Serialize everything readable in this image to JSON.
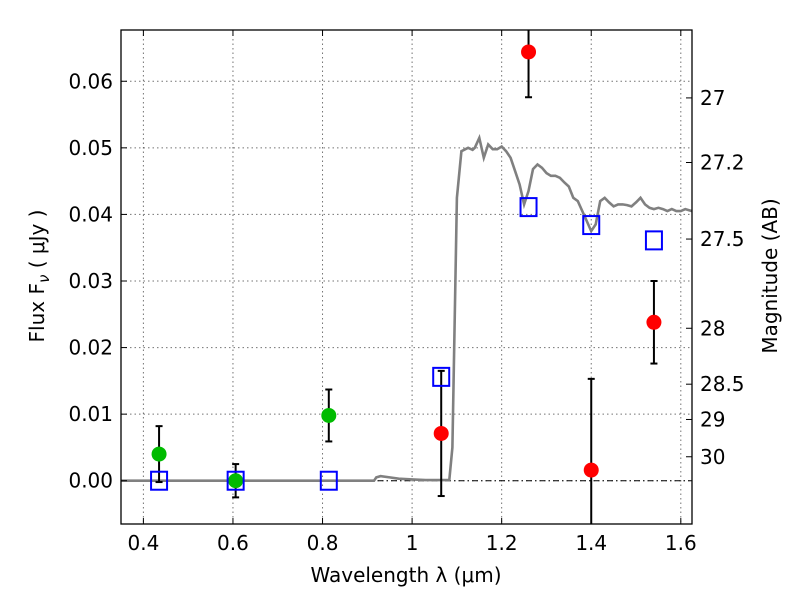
{
  "chart_data": {
    "type": "scatter",
    "xlabel": "Wavelength  λ (μm)",
    "ylabel": "Flux  F",
    "ylabel_sub": "ν",
    "ylabel_unit": "  ( μJy )",
    "y2label": "Magnitude (AB)",
    "xlim": [
      0.35,
      1.625
    ],
    "ylim": [
      -0.0065,
      0.0677
    ],
    "x_ticks": [
      0.4,
      0.6,
      0.8,
      1.0,
      1.2,
      1.4,
      1.6
    ],
    "x_tick_labels": [
      "0.4",
      "0.6",
      "0.8",
      "1",
      "1.2",
      "1.4",
      "1.6"
    ],
    "y_ticks": [
      0.0,
      0.01,
      0.02,
      0.03,
      0.04,
      0.05,
      0.06
    ],
    "y_tick_labels": [
      "0.00",
      "0.01",
      "0.02",
      "0.03",
      "0.04",
      "0.05",
      "0.06"
    ],
    "y2_ticks": [
      {
        "flux": 0.0575,
        "label": "27"
      },
      {
        "flux": 0.0478,
        "label": "27.2"
      },
      {
        "flux": 0.0363,
        "label": "27.5"
      },
      {
        "flux": 0.0229,
        "label": "28"
      },
      {
        "flux": 0.0145,
        "label": "28.5"
      },
      {
        "flux": 0.0092,
        "label": "29"
      },
      {
        "flux": 0.0036,
        "label": "30"
      }
    ],
    "grid": true,
    "series": [
      {
        "color": "#00bb00",
        "marker": "circle",
        "points": [
          {
            "x": 0.435,
            "y": 0.004,
            "err": 0.0042
          },
          {
            "x": 0.606,
            "y": 0.0,
            "err": 0.0025
          },
          {
            "x": 0.814,
            "y": 0.0098,
            "err": 0.0039
          }
        ]
      },
      {
        "color": "#ff0000",
        "marker": "circle",
        "points": [
          {
            "x": 1.065,
            "y": 0.0071,
            "err": 0.0094
          },
          {
            "x": 1.26,
            "y": 0.0644,
            "err": 0.0068
          },
          {
            "x": 1.4,
            "y": 0.0016,
            "err": 0.0137
          },
          {
            "x": 1.54,
            "y": 0.0238,
            "err": 0.0062
          }
        ]
      },
      {
        "color": "#0000ff",
        "marker": "square",
        "points": [
          {
            "x": 0.435,
            "y": 0.0
          },
          {
            "x": 0.606,
            "y": 0.0
          },
          {
            "x": 0.814,
            "y": 0.0
          },
          {
            "x": 1.065,
            "y": 0.0156
          },
          {
            "x": 1.26,
            "y": 0.0411
          },
          {
            "x": 1.4,
            "y": 0.0384
          },
          {
            "x": 1.54,
            "y": 0.0361
          }
        ]
      }
    ],
    "spectrum": {
      "color": "#808080",
      "x": [
        0.35,
        0.5,
        0.7,
        0.9,
        0.915,
        0.92,
        0.93,
        0.95,
        0.97,
        1.0,
        1.03,
        1.06,
        1.083,
        1.09,
        1.1,
        1.11,
        1.125,
        1.135,
        1.14,
        1.15,
        1.16,
        1.17,
        1.18,
        1.19,
        1.2,
        1.21,
        1.22,
        1.23,
        1.24,
        1.25,
        1.26,
        1.27,
        1.28,
        1.29,
        1.3,
        1.31,
        1.32,
        1.33,
        1.34,
        1.35,
        1.36,
        1.37,
        1.38,
        1.39,
        1.4,
        1.41,
        1.42,
        1.43,
        1.44,
        1.45,
        1.46,
        1.47,
        1.48,
        1.49,
        1.5,
        1.51,
        1.52,
        1.53,
        1.54,
        1.55,
        1.56,
        1.57,
        1.58,
        1.59,
        1.6,
        1.61,
        1.625
      ],
      "y": [
        0.0,
        0.0,
        0.0,
        0.0,
        0.0,
        0.0005,
        0.0007,
        0.0005,
        0.0003,
        0.0002,
        0.0001,
        0.0001,
        0.0001,
        0.005,
        0.0425,
        0.0495,
        0.05,
        0.0497,
        0.05,
        0.0515,
        0.0485,
        0.0505,
        0.0498,
        0.0498,
        0.0502,
        0.0495,
        0.0485,
        0.0465,
        0.0445,
        0.0415,
        0.0435,
        0.0468,
        0.0475,
        0.047,
        0.0462,
        0.0458,
        0.0458,
        0.0455,
        0.0448,
        0.0442,
        0.0425,
        0.042,
        0.0405,
        0.039,
        0.0375,
        0.0385,
        0.042,
        0.0425,
        0.0418,
        0.0412,
        0.0415,
        0.0415,
        0.0414,
        0.0412,
        0.0418,
        0.0425,
        0.0415,
        0.041,
        0.0408,
        0.041,
        0.0408,
        0.0405,
        0.0408,
        0.0405,
        0.0405,
        0.0408,
        0.0405
      ]
    }
  }
}
